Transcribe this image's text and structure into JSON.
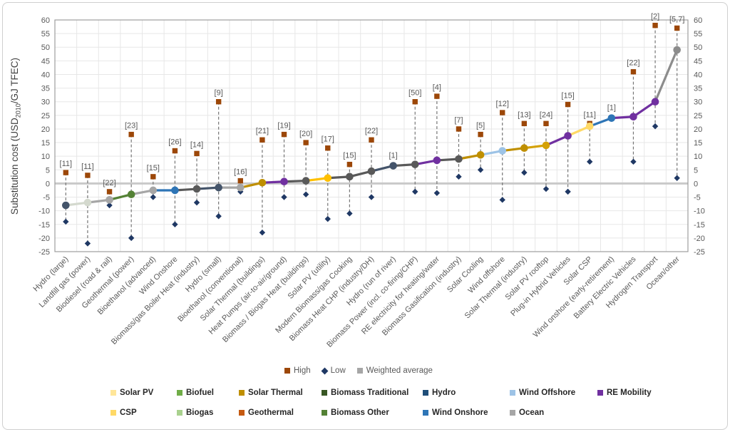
{
  "y_axis": {
    "title_prefix": "Substitution cost (USD",
    "title_sub": "2010",
    "title_suffix": "/GJ TFEC)"
  },
  "legend": {
    "markers": [
      {
        "label": "High",
        "color": "#9C4708",
        "shape": "square"
      },
      {
        "label": "Low",
        "color": "#1F3864",
        "shape": "diamond"
      },
      {
        "label": "Weighted average",
        "color": "#A6A6A6",
        "shape": "square"
      }
    ],
    "categories": [
      {
        "label": "Solar PV",
        "color": "#FFE699",
        "row": 0,
        "col": 0
      },
      {
        "label": "Biofuel",
        "color": "#70AD47",
        "row": 0,
        "col": 1
      },
      {
        "label": "Solar Thermal",
        "color": "#BF8F00",
        "row": 0,
        "col": 2
      },
      {
        "label": "Biomass Traditional",
        "color": "#375623",
        "row": 0,
        "col": 3
      },
      {
        "label": "Hydro",
        "color": "#1F4E79",
        "row": 0,
        "col": 4
      },
      {
        "label": "Wind Offshore",
        "color": "#9DC3E6",
        "row": 0,
        "col": 5
      },
      {
        "label": "RE Mobility",
        "color": "#7030A0",
        "row": 0,
        "col": 6
      },
      {
        "label": "CSP",
        "color": "#FFD966",
        "row": 1,
        "col": 0
      },
      {
        "label": "Biogas",
        "color": "#A9D18E",
        "row": 1,
        "col": 1
      },
      {
        "label": "Geothermal",
        "color": "#C55A11",
        "row": 1,
        "col": 2
      },
      {
        "label": "Biomass Other",
        "color": "#538135",
        "row": 1,
        "col": 3
      },
      {
        "label": "Wind Onshore",
        "color": "#2E75B6",
        "row": 1,
        "col": 4
      },
      {
        "label": "Ocean",
        "color": "#A6A6A6",
        "row": 1,
        "col": 5
      }
    ]
  },
  "chart_data": {
    "type": "scatter",
    "title": "",
    "xlabel": "",
    "ylabel": "Substitution cost (USD2010/GJ TFEC)",
    "ylim": [
      -25,
      60
    ],
    "ytick_step": 5,
    "grid": true,
    "legend_position": "bottom",
    "series_names": [
      "High",
      "Low",
      "Weighted average"
    ],
    "series_colors": {
      "high": "#9C4708",
      "low": "#1F3864",
      "avg_default": "#A6A6A6"
    },
    "points": [
      {
        "label": "Hydro (large)",
        "avg": -8,
        "high": 4,
        "low": -14,
        "refs": "[11]",
        "color": "#44546A"
      },
      {
        "label": "Landfill gas (power)",
        "avg": -7,
        "high": 3,
        "low": -22,
        "refs": "[11]",
        "color": "#D4D9CE"
      },
      {
        "label": "Biodiesel (road & rail)",
        "avg": -6,
        "high": -3,
        "low": -8,
        "refs": "[22]",
        "color": "#A6A6A6"
      },
      {
        "label": "Geothermal (power)",
        "avg": -4,
        "high": 18,
        "low": -20,
        "refs": "[23]",
        "color": "#548235"
      },
      {
        "label": "Bioethanol (advanced)",
        "avg": -2.5,
        "high": 2.5,
        "low": -5,
        "refs": "[15]",
        "color": "#A6A6A6"
      },
      {
        "label": "Wind Onshore",
        "avg": -2.5,
        "high": 12,
        "low": -15,
        "refs": "[26]",
        "color": "#2E75B6"
      },
      {
        "label": "Biomass/gas Boiler Heat (industry)",
        "avg": -2,
        "high": 11,
        "low": -7,
        "refs": "[14]",
        "color": "#595959"
      },
      {
        "label": "Hydro (small)",
        "avg": -1.5,
        "high": 30,
        "low": -12,
        "refs": "[9]",
        "color": "#44546A"
      },
      {
        "label": "Bioethanol (conventional)",
        "avg": -1.5,
        "high": 1,
        "low": -3,
        "refs": "[16]",
        "color": "#A6A6A6"
      },
      {
        "label": "Solar Thermal (buildings)",
        "avg": 0.3,
        "high": 16,
        "low": -18,
        "refs": "[21]",
        "color": "#BF8F00"
      },
      {
        "label": "Heat Pumps (air-to-air/ground)",
        "avg": 0.7,
        "high": 18,
        "low": -5,
        "refs": "[19]",
        "color": "#7030A0"
      },
      {
        "label": "Biomass / Biogas Heat (buildings)",
        "avg": 1,
        "high": 15,
        "low": -4,
        "refs": "[20]",
        "color": "#595959"
      },
      {
        "label": "Solar PV (utility)",
        "avg": 2,
        "high": 13,
        "low": -13,
        "refs": "[17]",
        "color": "#FFC000"
      },
      {
        "label": "Modern Biomass/gas Cooking",
        "avg": 2.5,
        "high": 7,
        "low": -11,
        "refs": "[15]",
        "color": "#595959"
      },
      {
        "label": "Biomass Heat CHP (industry/DH)",
        "avg": 4.5,
        "high": 16,
        "low": -5,
        "refs": "[22]",
        "color": "#595959"
      },
      {
        "label": "Hydro (run of river)",
        "avg": 6.5,
        "high": null,
        "low": null,
        "refs": "[1]",
        "color": "#44546A"
      },
      {
        "label": "Biomass Power (incl. co-firing/CHP)",
        "avg": 7,
        "high": 30,
        "low": -3,
        "refs": "[50]",
        "color": "#595959"
      },
      {
        "label": "RE electricity for heating/water",
        "avg": 8.5,
        "high": 32,
        "low": -3.5,
        "refs": "[4]",
        "color": "#7030A0"
      },
      {
        "label": "Biomass Gasification (industry)",
        "avg": 9,
        "high": 20,
        "low": 2.5,
        "refs": "[7]",
        "color": "#595959"
      },
      {
        "label": "Solar Cooling",
        "avg": 10.5,
        "high": 18,
        "low": 5,
        "refs": "[5]",
        "color": "#BF8F00"
      },
      {
        "label": "Wind offshore",
        "avg": 12,
        "high": 26,
        "low": -6,
        "refs": "[12]",
        "color": "#9DC3E6"
      },
      {
        "label": "Solar Thermal (industry)",
        "avg": 13,
        "high": 22,
        "low": 4,
        "refs": "[13]",
        "color": "#BF8F00"
      },
      {
        "label": "Solar PV rooftop",
        "avg": 14,
        "high": 22,
        "low": -2,
        "refs": "[24]",
        "color": "#D4A106"
      },
      {
        "label": "Plug-in Hybrid Vehicles",
        "avg": 17.5,
        "high": 29,
        "low": -3,
        "refs": "[15]",
        "color": "#7030A0"
      },
      {
        "label": "Solar CSP",
        "avg": 21,
        "high": 22,
        "low": 8,
        "refs": "[11]",
        "color": "#FFD966"
      },
      {
        "label": "Wind onshore (early-retirement)",
        "avg": 24,
        "high": null,
        "low": null,
        "refs": "[1]",
        "color": "#2E75B6"
      },
      {
        "label": "Battery Electric Vehicles",
        "avg": 24.5,
        "high": 41,
        "low": 8,
        "refs": "[22]",
        "color": "#7030A0"
      },
      {
        "label": "Hydrogen Transport",
        "avg": 30,
        "high": 58,
        "low": 21,
        "refs": "[2]",
        "color": "#7030A0"
      },
      {
        "label": "Ocean/other",
        "avg": 49,
        "high": 57,
        "low": 2,
        "refs": "[5,7]",
        "color": "#8C8C8C"
      }
    ]
  }
}
